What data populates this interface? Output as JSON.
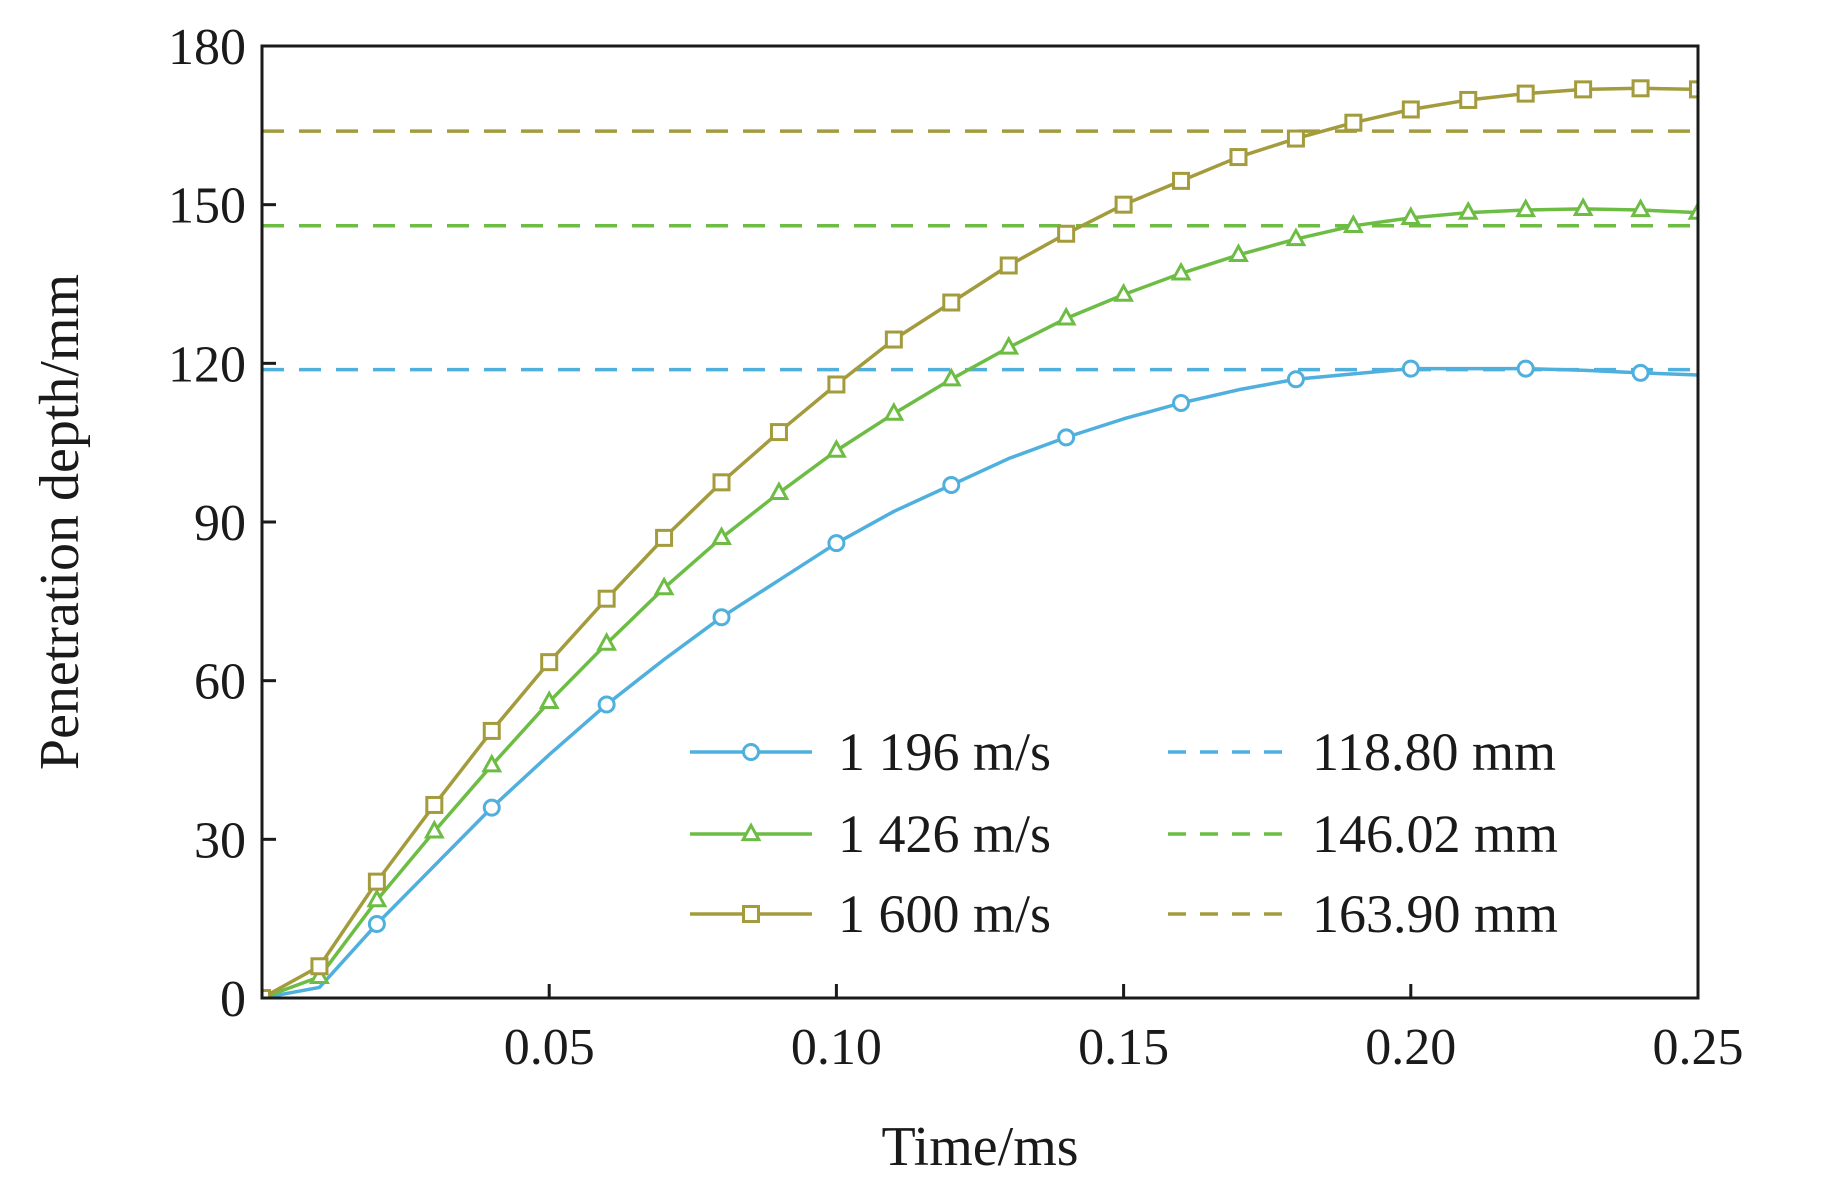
{
  "chart_data": {
    "type": "line",
    "xlabel": "Time/ms",
    "ylabel": "Penetration depth/mm",
    "xlim": [
      0,
      0.25
    ],
    "ylim": [
      0,
      180
    ],
    "xticks": [
      0.05,
      0.1,
      0.15,
      0.2,
      0.25
    ],
    "xtick_labels": [
      "0.05",
      "0.10",
      "0.15",
      "0.20",
      "0.25"
    ],
    "yticks": [
      0,
      30,
      60,
      90,
      120,
      150,
      180
    ],
    "ytick_labels": [
      "0",
      "30",
      "60",
      "90",
      "120",
      "150",
      "180"
    ],
    "grid": false,
    "legend_position": "bottom-right",
    "series": [
      {
        "name": "1 196 m/s",
        "color": "#4fb0de",
        "marker": "circle",
        "x": [
          0,
          0.01,
          0.02,
          0.03,
          0.04,
          0.05,
          0.06,
          0.07,
          0.08,
          0.09,
          0.1,
          0.11,
          0.12,
          0.13,
          0.14,
          0.15,
          0.16,
          0.17,
          0.18,
          0.19,
          0.2,
          0.21,
          0.22,
          0.23,
          0.24,
          0.25
        ],
        "y": [
          0,
          2,
          14,
          25,
          36,
          46,
          55.5,
          64,
          72,
          79,
          86,
          92,
          97,
          102,
          106,
          109.5,
          112.5,
          115,
          117,
          118,
          119,
          119,
          119,
          118.7,
          118.2,
          117.8
        ],
        "marker_x": [
          0,
          0.02,
          0.04,
          0.06,
          0.08,
          0.1,
          0.12,
          0.14,
          0.16,
          0.18,
          0.2,
          0.22,
          0.24
        ]
      },
      {
        "name": "1 426 m/s",
        "color": "#6dbd45",
        "marker": "triangle",
        "x": [
          0,
          0.01,
          0.02,
          0.03,
          0.04,
          0.05,
          0.06,
          0.07,
          0.08,
          0.09,
          0.1,
          0.11,
          0.12,
          0.13,
          0.14,
          0.15,
          0.16,
          0.17,
          0.18,
          0.19,
          0.2,
          0.21,
          0.22,
          0.23,
          0.24,
          0.25
        ],
        "y": [
          0,
          4,
          18.5,
          31.5,
          44,
          56,
          67,
          77.5,
          87,
          95.5,
          103.5,
          110.5,
          117,
          123,
          128.5,
          133,
          137,
          140.5,
          143.5,
          146,
          147.5,
          148.5,
          149,
          149.2,
          149,
          148.5
        ],
        "marker_x": [
          0,
          0.01,
          0.02,
          0.03,
          0.04,
          0.05,
          0.06,
          0.07,
          0.08,
          0.09,
          0.1,
          0.11,
          0.12,
          0.13,
          0.14,
          0.15,
          0.16,
          0.17,
          0.18,
          0.19,
          0.2,
          0.21,
          0.22,
          0.23,
          0.24,
          0.25
        ]
      },
      {
        "name": "1 600 m/s",
        "color": "#a39b3c",
        "marker": "square",
        "x": [
          0,
          0.01,
          0.02,
          0.03,
          0.04,
          0.05,
          0.06,
          0.07,
          0.08,
          0.09,
          0.1,
          0.11,
          0.12,
          0.13,
          0.14,
          0.15,
          0.16,
          0.17,
          0.18,
          0.19,
          0.2,
          0.21,
          0.22,
          0.23,
          0.24,
          0.25
        ],
        "y": [
          0,
          6,
          22,
          36.5,
          50.5,
          63.5,
          75.5,
          87,
          97.5,
          107,
          116,
          124.5,
          131.5,
          138.5,
          144.5,
          150,
          154.5,
          159,
          162.5,
          165.5,
          168,
          169.8,
          171,
          171.8,
          172,
          171.8
        ],
        "marker_x": [
          0,
          0.01,
          0.02,
          0.03,
          0.04,
          0.05,
          0.06,
          0.07,
          0.08,
          0.09,
          0.1,
          0.11,
          0.12,
          0.13,
          0.14,
          0.15,
          0.16,
          0.17,
          0.18,
          0.19,
          0.2,
          0.21,
          0.22,
          0.23,
          0.24,
          0.25
        ]
      },
      {
        "name": "118.80 mm",
        "color": "#4fb0de",
        "style": "dashed",
        "x": [
          0,
          0.25
        ],
        "y": [
          118.8,
          118.8
        ]
      },
      {
        "name": "146.02 mm",
        "color": "#6dbd45",
        "style": "dashed",
        "x": [
          0,
          0.25
        ],
        "y": [
          146.02,
          146.02
        ]
      },
      {
        "name": "163.90 mm",
        "color": "#a39b3c",
        "style": "dashed",
        "x": [
          0,
          0.25
        ],
        "y": [
          163.9,
          163.9
        ]
      }
    ]
  }
}
